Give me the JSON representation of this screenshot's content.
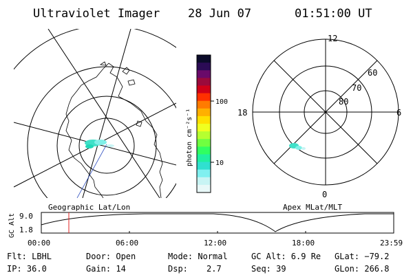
{
  "header": {
    "title": "Ultraviolet Imager",
    "date": "28 Jun 07",
    "time": "01:51:00 UT"
  },
  "left_panel": {
    "label": "Geographic Lat/Lon"
  },
  "colorbar": {
    "unit_label": "photon cm⁻²s⁻¹",
    "ticks": [
      "100",
      "10"
    ],
    "colors": [
      "#0b0b2a",
      "#2b0b55",
      "#6a0a6a",
      "#9a0a3c",
      "#d00018",
      "#ff3000",
      "#ff7b00",
      "#ffb000",
      "#ffe000",
      "#f0ff20",
      "#b6ff30",
      "#70ff40",
      "#30ff60",
      "#20f0a0",
      "#30e0d0",
      "#80f0f0",
      "#c8f4f4",
      "#e8f8f8"
    ]
  },
  "right_panel": {
    "label": "Apex MLat/MLT",
    "mlt_labels": {
      "top": "12",
      "bottom": "0",
      "left": "18",
      "right": "6"
    },
    "lat_labels": [
      "60",
      "70",
      "80"
    ]
  },
  "timeline": {
    "y_axis_label": "GC Alt",
    "y_ticks": [
      "9.0",
      "1.8"
    ],
    "x_ticks": [
      "00:00",
      "06:00",
      "12:00",
      "18:00",
      "23:59"
    ]
  },
  "info": {
    "filter": "Flt: LBHL",
    "door": "Door: Open",
    "mode": "Mode: Normal",
    "gc_alt": "GC Alt: 6.9 Re",
    "glat": "GLat: −79.2",
    "ip": "IP: 36.0",
    "gain": "Gain: 14",
    "dsp_label": "Dsp:",
    "dsp_value": "2.7",
    "seq": "Seq: 39",
    "glon": "GLon: 266.8"
  }
}
